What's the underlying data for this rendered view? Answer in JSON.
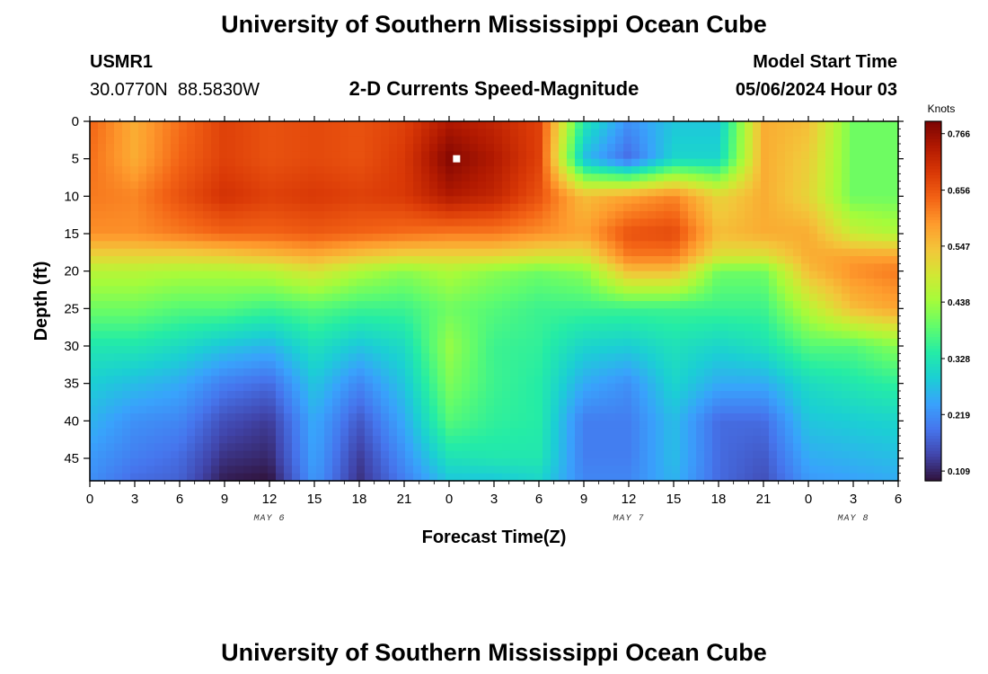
{
  "chart_data": {
    "type": "heatmap",
    "title": "University of Southern Mississippi Ocean Cube",
    "footer_title": "University of Southern Mississippi Ocean Cube",
    "station_id": "USMR1",
    "station_coords": "30.0770N  88.5830W",
    "subtitle": "2-D Currents Speed-Magnitude",
    "model_start_label": "Model Start Time",
    "model_start_value": "05/06/2024 Hour 03",
    "xlabel": "Forecast Time(Z)",
    "ylabel": "Depth (ft)",
    "colorbar_label": "Knots",
    "x_range_hours": [
      0,
      54
    ],
    "y_range_ft": [
      0,
      48
    ],
    "x_ticks": [
      {
        "hour": 0,
        "label": "0"
      },
      {
        "hour": 3,
        "label": "3"
      },
      {
        "hour": 6,
        "label": "6"
      },
      {
        "hour": 9,
        "label": "9"
      },
      {
        "hour": 12,
        "label": "12"
      },
      {
        "hour": 15,
        "label": "15"
      },
      {
        "hour": 18,
        "label": "18"
      },
      {
        "hour": 21,
        "label": "21"
      },
      {
        "hour": 24,
        "label": "0"
      },
      {
        "hour": 27,
        "label": "3"
      },
      {
        "hour": 30,
        "label": "6"
      },
      {
        "hour": 33,
        "label": "9"
      },
      {
        "hour": 36,
        "label": "12"
      },
      {
        "hour": 39,
        "label": "15"
      },
      {
        "hour": 42,
        "label": "18"
      },
      {
        "hour": 45,
        "label": "21"
      },
      {
        "hour": 48,
        "label": "0"
      },
      {
        "hour": 51,
        "label": "3"
      },
      {
        "hour": 54,
        "label": "6"
      }
    ],
    "y_ticks": [
      0,
      5,
      10,
      15,
      20,
      25,
      30,
      35,
      40,
      45
    ],
    "day_labels": [
      {
        "hour": 12,
        "label": "MAY 6"
      },
      {
        "hour": 36,
        "label": "MAY 7"
      },
      {
        "hour": 51,
        "label": "MAY 8"
      }
    ],
    "colorbar_ticks": [
      "0.109",
      "0.219",
      "0.328",
      "0.438",
      "0.547",
      "0.656",
      "0.766"
    ],
    "value_range": [
      0.09,
      0.79
    ],
    "colors": {
      "scale": [
        "#30123b",
        "#4145ab",
        "#4675ed",
        "#39a2fc",
        "#1bcfd4",
        "#24eca6",
        "#61fc6c",
        "#a4fc3b",
        "#d1e834",
        "#f3c63a",
        "#fe9b2d",
        "#f36315",
        "#d93806",
        "#b11901",
        "#7a0403"
      ],
      "marker": "#ffffff"
    },
    "marker_point": {
      "hour": 24.5,
      "depth_ft": 5
    },
    "time_hours": [
      0,
      3,
      6,
      9,
      12,
      15,
      18,
      21,
      24,
      27,
      30,
      33,
      36,
      39,
      42,
      45,
      48,
      51,
      54
    ],
    "depth_ft": [
      0,
      5,
      10,
      15,
      18,
      20,
      25,
      30,
      35,
      40,
      45,
      48
    ],
    "speed_knots": [
      [
        0.64,
        0.57,
        0.63,
        0.68,
        0.66,
        0.67,
        0.66,
        0.68,
        0.74,
        0.72,
        0.68,
        0.33,
        0.22,
        0.28,
        0.28,
        0.57,
        0.55,
        0.4,
        0.4
      ],
      [
        0.63,
        0.57,
        0.64,
        0.68,
        0.66,
        0.67,
        0.66,
        0.69,
        0.78,
        0.74,
        0.68,
        0.27,
        0.18,
        0.3,
        0.3,
        0.57,
        0.53,
        0.4,
        0.4
      ],
      [
        0.62,
        0.61,
        0.66,
        0.7,
        0.68,
        0.69,
        0.68,
        0.69,
        0.74,
        0.72,
        0.66,
        0.55,
        0.58,
        0.61,
        0.52,
        0.57,
        0.52,
        0.4,
        0.4
      ],
      [
        0.6,
        0.6,
        0.62,
        0.64,
        0.64,
        0.65,
        0.64,
        0.63,
        0.62,
        0.62,
        0.6,
        0.58,
        0.66,
        0.67,
        0.55,
        0.57,
        0.57,
        0.48,
        0.45
      ],
      [
        0.52,
        0.52,
        0.52,
        0.53,
        0.55,
        0.57,
        0.54,
        0.52,
        0.52,
        0.52,
        0.5,
        0.5,
        0.62,
        0.62,
        0.5,
        0.5,
        0.57,
        0.58,
        0.58
      ],
      [
        0.46,
        0.46,
        0.45,
        0.45,
        0.46,
        0.5,
        0.45,
        0.42,
        0.45,
        0.42,
        0.4,
        0.42,
        0.55,
        0.55,
        0.4,
        0.4,
        0.55,
        0.6,
        0.62
      ],
      [
        0.4,
        0.4,
        0.38,
        0.38,
        0.36,
        0.38,
        0.36,
        0.36,
        0.4,
        0.38,
        0.36,
        0.36,
        0.36,
        0.36,
        0.36,
        0.36,
        0.46,
        0.55,
        0.58
      ],
      [
        0.33,
        0.33,
        0.31,
        0.28,
        0.26,
        0.32,
        0.28,
        0.31,
        0.43,
        0.36,
        0.35,
        0.3,
        0.29,
        0.32,
        0.3,
        0.32,
        0.38,
        0.38,
        0.42
      ],
      [
        0.29,
        0.27,
        0.25,
        0.2,
        0.18,
        0.28,
        0.21,
        0.28,
        0.41,
        0.36,
        0.34,
        0.25,
        0.22,
        0.3,
        0.25,
        0.25,
        0.31,
        0.33,
        0.35
      ],
      [
        0.26,
        0.22,
        0.21,
        0.15,
        0.13,
        0.25,
        0.16,
        0.25,
        0.38,
        0.35,
        0.34,
        0.2,
        0.2,
        0.27,
        0.18,
        0.18,
        0.28,
        0.29,
        0.3
      ],
      [
        0.23,
        0.2,
        0.18,
        0.12,
        0.11,
        0.24,
        0.13,
        0.22,
        0.32,
        0.33,
        0.33,
        0.2,
        0.2,
        0.27,
        0.18,
        0.16,
        0.25,
        0.26,
        0.27
      ],
      [
        0.22,
        0.18,
        0.17,
        0.1,
        0.09,
        0.23,
        0.12,
        0.2,
        0.28,
        0.28,
        0.3,
        0.21,
        0.21,
        0.26,
        0.18,
        0.15,
        0.23,
        0.24,
        0.25
      ]
    ]
  }
}
